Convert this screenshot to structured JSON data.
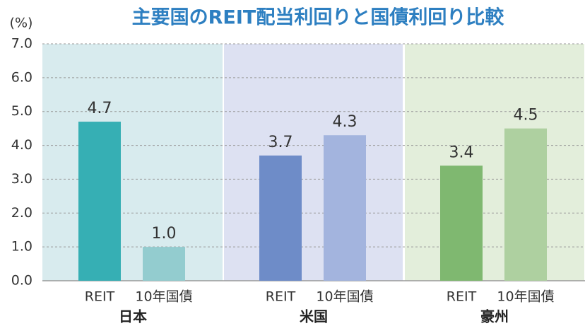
{
  "chart_data": {
    "type": "grouped-bar",
    "title": "主要国のREIT配当利回りと国債利回り比較",
    "y_unit": "(%)",
    "ylim": [
      0,
      7
    ],
    "yticks": [
      {
        "value": 0,
        "label": "0.0"
      },
      {
        "value": 1,
        "label": "1.0"
      },
      {
        "value": 2,
        "label": "2.0"
      },
      {
        "value": 3,
        "label": "3.0"
      },
      {
        "value": 4,
        "label": "4.0"
      },
      {
        "value": 5,
        "label": "5.0"
      },
      {
        "value": 6,
        "label": "6.0"
      },
      {
        "value": 7,
        "label": "7.0"
      }
    ],
    "grid": true,
    "groups": [
      {
        "name": "日本",
        "background": "#d8ebee",
        "labels": [
          "REIT",
          "10年国債"
        ],
        "values": [
          4.7,
          1.0
        ],
        "value_labels": [
          "4.7",
          "1.0"
        ],
        "colors": [
          "#36afb4",
          "#93cccf"
        ]
      },
      {
        "name": "米国",
        "background": "#dde1f2",
        "labels": [
          "REIT",
          "10年国債"
        ],
        "values": [
          3.7,
          4.3
        ],
        "value_labels": [
          "3.7",
          "4.3"
        ],
        "colors": [
          "#6e8cc8",
          "#a3b4de"
        ]
      },
      {
        "name": "豪州",
        "background": "#e3eedb",
        "labels": [
          "REIT",
          "10年国債"
        ],
        "values": [
          3.4,
          4.5
        ],
        "value_labels": [
          "3.4",
          "4.5"
        ],
        "colors": [
          "#7fb870",
          "#aed0a0"
        ]
      }
    ]
  }
}
